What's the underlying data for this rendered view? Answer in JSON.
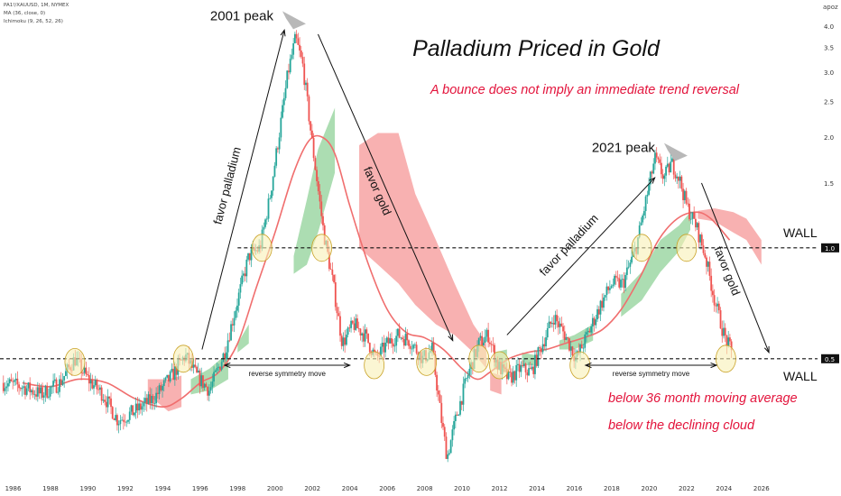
{
  "header": {
    "symbol_line": "PA1!/XAUUSD, 1M, NYMEX",
    "ma_line": "MA (36, close, 0)",
    "ichimoku_line": "Ichimoku (9, 26, 52, 26)",
    "corner_label": "apoz"
  },
  "chart_data": {
    "type": "candlestick",
    "title": "Palladium Priced in Gold",
    "subtitle": "A bounce does not imply an immediate trend reversal",
    "x_ticks": [
      "1986",
      "1988",
      "1990",
      "1992",
      "1994",
      "1996",
      "1998",
      "2000",
      "2002",
      "2004",
      "2006",
      "2008",
      "2010",
      "2012",
      "2014",
      "2016",
      "2018",
      "2020",
      "2022",
      "2024",
      "2026"
    ],
    "y_ticks": [
      4.0,
      3.5,
      3.0,
      2.5,
      2.0,
      1.5,
      1.0,
      0.5
    ],
    "y_scale": "log",
    "xlim": [
      1985.3,
      2029.0
    ],
    "ylim": [
      0.24,
      4.35
    ],
    "price_tags": [
      {
        "value": 1.0,
        "label": "1.0"
      },
      {
        "value": 0.5,
        "label": "0.5"
      }
    ],
    "walls": [
      {
        "value": 1.0,
        "from": 1998.0,
        "label": "WALL"
      },
      {
        "value": 0.5,
        "from": 1985.3,
        "label": "WALL"
      }
    ],
    "price_path": [
      [
        1985.4,
        0.43
      ],
      [
        1986.5,
        0.42
      ],
      [
        1987.5,
        0.4
      ],
      [
        1988.5,
        0.43
      ],
      [
        1989.3,
        0.5
      ],
      [
        1990.0,
        0.44
      ],
      [
        1990.8,
        0.4
      ],
      [
        1991.6,
        0.34
      ],
      [
        1992.5,
        0.36
      ],
      [
        1993.5,
        0.39
      ],
      [
        1994.5,
        0.45
      ],
      [
        1995.2,
        0.51
      ],
      [
        1995.8,
        0.45
      ],
      [
        1996.5,
        0.41
      ],
      [
        1997.3,
        0.52
      ],
      [
        1998.0,
        0.72
      ],
      [
        1998.6,
        0.95
      ],
      [
        1999.2,
        1.0
      ],
      [
        1999.7,
        1.35
      ],
      [
        2000.2,
        2.0
      ],
      [
        2000.7,
        3.0
      ],
      [
        2001.1,
        3.7
      ],
      [
        2001.5,
        3.1
      ],
      [
        2002.0,
        1.9
      ],
      [
        2002.6,
        1.1
      ],
      [
        2003.1,
        0.8
      ],
      [
        2003.6,
        0.55
      ],
      [
        2004.2,
        0.62
      ],
      [
        2004.8,
        0.58
      ],
      [
        2005.4,
        0.5
      ],
      [
        2006.0,
        0.55
      ],
      [
        2006.6,
        0.58
      ],
      [
        2007.2,
        0.56
      ],
      [
        2007.9,
        0.5
      ],
      [
        2008.4,
        0.53
      ],
      [
        2008.9,
        0.34
      ],
      [
        2009.2,
        0.27
      ],
      [
        2009.7,
        0.35
      ],
      [
        2010.3,
        0.45
      ],
      [
        2010.9,
        0.55
      ],
      [
        2011.4,
        0.58
      ],
      [
        2011.9,
        0.48
      ],
      [
        2012.5,
        0.44
      ],
      [
        2013.1,
        0.47
      ],
      [
        2013.7,
        0.46
      ],
      [
        2014.3,
        0.55
      ],
      [
        2014.9,
        0.65
      ],
      [
        2015.5,
        0.58
      ],
      [
        2016.1,
        0.5
      ],
      [
        2016.7,
        0.58
      ],
      [
        2017.4,
        0.7
      ],
      [
        2018.0,
        0.8
      ],
      [
        2018.6,
        0.8
      ],
      [
        2019.3,
        1.0
      ],
      [
        2019.9,
        1.4
      ],
      [
        2020.3,
        1.75
      ],
      [
        2020.8,
        1.55
      ],
      [
        2021.2,
        1.7
      ],
      [
        2021.6,
        1.55
      ],
      [
        2022.0,
        1.3
      ],
      [
        2022.5,
        1.15
      ],
      [
        2023.0,
        0.95
      ],
      [
        2023.5,
        0.72
      ],
      [
        2024.0,
        0.58
      ],
      [
        2024.4,
        0.52
      ]
    ],
    "ma36_path": [
      [
        1986.5,
        0.43
      ],
      [
        1988.0,
        0.42
      ],
      [
        1989.5,
        0.44
      ],
      [
        1991.0,
        0.43
      ],
      [
        1992.5,
        0.39
      ],
      [
        1994.0,
        0.37
      ],
      [
        1995.0,
        0.39
      ],
      [
        1996.0,
        0.43
      ],
      [
        1997.0,
        0.46
      ],
      [
        1998.0,
        0.55
      ],
      [
        1999.0,
        0.78
      ],
      [
        2000.0,
        1.1
      ],
      [
        2001.0,
        1.6
      ],
      [
        2001.8,
        1.95
      ],
      [
        2002.5,
        2.0
      ],
      [
        2003.2,
        1.8
      ],
      [
        2004.0,
        1.3
      ],
      [
        2005.0,
        0.9
      ],
      [
        2006.0,
        0.68
      ],
      [
        2007.0,
        0.59
      ],
      [
        2008.0,
        0.57
      ],
      [
        2009.0,
        0.53
      ],
      [
        2010.0,
        0.47
      ],
      [
        2010.8,
        0.44
      ],
      [
        2011.5,
        0.46
      ],
      [
        2012.5,
        0.5
      ],
      [
        2013.5,
        0.52
      ],
      [
        2014.5,
        0.53
      ],
      [
        2015.5,
        0.55
      ],
      [
        2016.5,
        0.57
      ],
      [
        2017.5,
        0.6
      ],
      [
        2018.5,
        0.68
      ],
      [
        2019.5,
        0.83
      ],
      [
        2020.5,
        1.05
      ],
      [
        2021.5,
        1.2
      ],
      [
        2022.5,
        1.25
      ],
      [
        2023.3,
        1.2
      ],
      [
        2024.3,
        1.05
      ]
    ],
    "cloud_green": [
      [
        [
          1995.5,
          0.44
        ],
        [
          1996.5,
          0.47
        ],
        [
          1997.5,
          0.52
        ],
        [
          1997.5,
          0.44
        ],
        [
          1996.5,
          0.41
        ],
        [
          1995.5,
          0.4
        ]
      ],
      [
        [
          1998.0,
          0.55
        ],
        [
          1998.6,
          0.62
        ],
        [
          1998.6,
          0.55
        ],
        [
          1998.0,
          0.52
        ]
      ],
      [
        [
          2001.0,
          0.95
        ],
        [
          2001.7,
          1.35
        ],
        [
          2002.3,
          1.85
        ],
        [
          2003.2,
          2.4
        ],
        [
          2003.2,
          1.6
        ],
        [
          2002.3,
          1.1
        ],
        [
          2001.7,
          0.9
        ],
        [
          2001.0,
          0.85
        ]
      ],
      [
        [
          2011.7,
          0.52
        ],
        [
          2012.4,
          0.53
        ],
        [
          2012.4,
          0.46
        ],
        [
          2011.7,
          0.47
        ]
      ],
      [
        [
          2013.2,
          0.52
        ],
        [
          2014.0,
          0.51
        ],
        [
          2014.0,
          0.48
        ],
        [
          2013.2,
          0.48
        ]
      ],
      [
        [
          2015.2,
          0.56
        ],
        [
          2016.0,
          0.58
        ],
        [
          2017.0,
          0.62
        ],
        [
          2017.0,
          0.56
        ],
        [
          2016.0,
          0.53
        ],
        [
          2015.2,
          0.53
        ]
      ],
      [
        [
          2018.5,
          0.75
        ],
        [
          2019.6,
          0.86
        ],
        [
          2020.6,
          1.05
        ],
        [
          2021.6,
          1.15
        ],
        [
          2022.2,
          1.25
        ],
        [
          2022.2,
          1.12
        ],
        [
          2021.6,
          0.98
        ],
        [
          2020.6,
          0.86
        ],
        [
          2019.6,
          0.72
        ],
        [
          2018.5,
          0.65
        ]
      ]
    ],
    "cloud_red": [
      [
        [
          1993.2,
          0.44
        ],
        [
          1994.3,
          0.44
        ],
        [
          1995.0,
          0.45
        ],
        [
          1995.0,
          0.37
        ],
        [
          1994.3,
          0.36
        ],
        [
          1993.2,
          0.4
        ]
      ],
      [
        [
          2004.5,
          1.9
        ],
        [
          2005.5,
          2.05
        ],
        [
          2006.6,
          2.05
        ],
        [
          2007.5,
          1.4
        ],
        [
          2008.6,
          1.05
        ],
        [
          2009.6,
          0.8
        ],
        [
          2010.6,
          0.62
        ],
        [
          2011.3,
          0.55
        ],
        [
          2011.3,
          0.47
        ],
        [
          2010.6,
          0.52
        ],
        [
          2009.6,
          0.58
        ],
        [
          2008.6,
          0.62
        ],
        [
          2007.5,
          0.7
        ],
        [
          2006.6,
          0.8
        ],
        [
          2005.5,
          0.9
        ],
        [
          2004.5,
          1.0
        ]
      ],
      [
        [
          2011.5,
          0.46
        ],
        [
          2012.1,
          0.45
        ],
        [
          2012.1,
          0.4
        ],
        [
          2011.5,
          0.41
        ]
      ],
      [
        [
          2022.6,
          1.26
        ],
        [
          2023.5,
          1.28
        ],
        [
          2024.5,
          1.25
        ],
        [
          2025.2,
          1.2
        ],
        [
          2026.0,
          1.05
        ],
        [
          2026.0,
          0.9
        ],
        [
          2025.2,
          1.05
        ],
        [
          2024.5,
          1.1
        ],
        [
          2023.5,
          1.18
        ],
        [
          2022.6,
          1.2
        ]
      ]
    ],
    "circles": [
      [
        1989.3,
        0.49
      ],
      [
        1995.1,
        0.5
      ],
      [
        1999.3,
        1.0
      ],
      [
        2002.5,
        1.0
      ],
      [
        2005.3,
        0.48
      ],
      [
        2008.1,
        0.49
      ],
      [
        2010.9,
        0.5
      ],
      [
        2012.0,
        0.48
      ],
      [
        2016.3,
        0.48
      ],
      [
        2019.6,
        1.0
      ],
      [
        2022.0,
        1.0
      ],
      [
        2024.1,
        0.5
      ]
    ],
    "arrows": [
      {
        "from": [
          1996.1,
          0.53
        ],
        "to": [
          2000.5,
          3.9
        ],
        "label": "favor palladium"
      },
      {
        "from": [
          2002.3,
          3.8
        ],
        "to": [
          2009.5,
          0.56
        ],
        "label": "favor gold"
      },
      {
        "from": [
          2012.4,
          0.58
        ],
        "to": [
          2020.3,
          1.55
        ],
        "label": "favor palladium"
      },
      {
        "from": [
          2022.8,
          1.5
        ],
        "to": [
          2026.4,
          0.52
        ],
        "label": "favor gold"
      }
    ],
    "symmetry_moves": [
      {
        "from": [
          1997.3,
          0.48
        ],
        "to": [
          2004.0,
          0.48
        ],
        "label": "reverse symmetry move"
      },
      {
        "from": [
          2016.6,
          0.48
        ],
        "to": [
          2023.6,
          0.48
        ],
        "label": "reverse symmetry move"
      }
    ],
    "peaks": [
      {
        "at": [
          2000.3,
          4.15
        ],
        "label": "2001 peak"
      },
      {
        "at": [
          2020.7,
          1.82
        ],
        "label": "2021 peak"
      }
    ],
    "notes": [
      "below 36 month moving average",
      "below the declining cloud"
    ]
  },
  "colors": {
    "up_candle": "#26a69a",
    "down_candle": "#ef5350",
    "ma_line": "#f06e6e",
    "cloud_green": "#9ed7a4",
    "cloud_red": "#f7a3a3",
    "accent_red": "#e3143c",
    "circle_fill": "#f9f0b6",
    "circle_stroke": "#c9a227",
    "wall_line": "#111111",
    "peak_arrow": "#b8b8b8"
  }
}
